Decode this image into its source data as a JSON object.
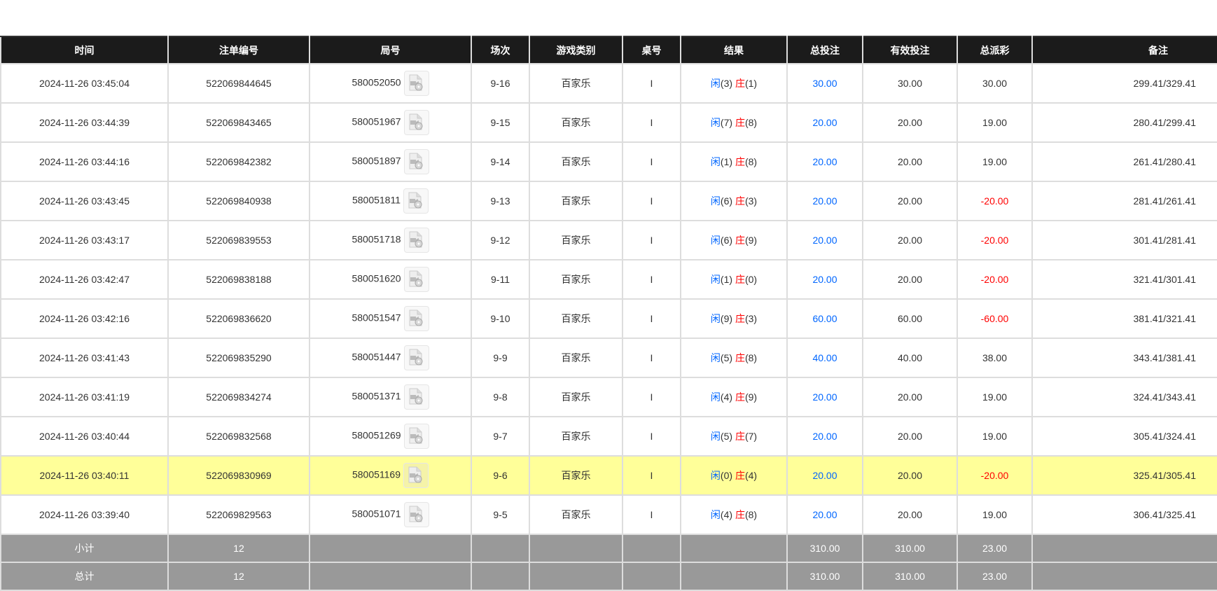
{
  "headers": [
    "时间",
    "注单编号",
    "局号",
    "场次",
    "游戏类别",
    "桌号",
    "结果",
    "总投注",
    "有效投注",
    "总派彩",
    "备注"
  ],
  "player_label": "闲",
  "banker_label": "庄",
  "colors": {
    "header_bg": "#1b1b1b",
    "highlight_row": "#ffff99",
    "summary_bg": "#999999",
    "blue": "#0066ff",
    "red": "#ff0000"
  },
  "rows": [
    {
      "time": "2024-11-26 03:45:04",
      "bet_id": "522069844645",
      "round": "580052050",
      "shoe": "9-16",
      "game": "百家乐",
      "table": "I",
      "player": "(3)",
      "banker": "(1)",
      "total_bet": "30.00",
      "valid_bet": "30.00",
      "payout": "30.00",
      "payout_negative": false,
      "remark": "299.41/329.41"
    },
    {
      "time": "2024-11-26 03:44:39",
      "bet_id": "522069843465",
      "round": "580051967",
      "shoe": "9-15",
      "game": "百家乐",
      "table": "I",
      "player": "(7)",
      "banker": "(8)",
      "total_bet": "20.00",
      "valid_bet": "20.00",
      "payout": "19.00",
      "payout_negative": false,
      "remark": "280.41/299.41"
    },
    {
      "time": "2024-11-26 03:44:16",
      "bet_id": "522069842382",
      "round": "580051897",
      "shoe": "9-14",
      "game": "百家乐",
      "table": "I",
      "player": "(1)",
      "banker": "(8)",
      "total_bet": "20.00",
      "valid_bet": "20.00",
      "payout": "19.00",
      "payout_negative": false,
      "remark": "261.41/280.41"
    },
    {
      "time": "2024-11-26 03:43:45",
      "bet_id": "522069840938",
      "round": "580051811",
      "shoe": "9-13",
      "game": "百家乐",
      "table": "I",
      "player": "(6)",
      "banker": "(3)",
      "total_bet": "20.00",
      "valid_bet": "20.00",
      "payout": "-20.00",
      "payout_negative": true,
      "remark": "281.41/261.41"
    },
    {
      "time": "2024-11-26 03:43:17",
      "bet_id": "522069839553",
      "round": "580051718",
      "shoe": "9-12",
      "game": "百家乐",
      "table": "I",
      "player": "(6)",
      "banker": "(9)",
      "total_bet": "20.00",
      "valid_bet": "20.00",
      "payout": "-20.00",
      "payout_negative": true,
      "remark": "301.41/281.41"
    },
    {
      "time": "2024-11-26 03:42:47",
      "bet_id": "522069838188",
      "round": "580051620",
      "shoe": "9-11",
      "game": "百家乐",
      "table": "I",
      "player": "(1)",
      "banker": "(0)",
      "total_bet": "20.00",
      "valid_bet": "20.00",
      "payout": "-20.00",
      "payout_negative": true,
      "remark": "321.41/301.41"
    },
    {
      "time": "2024-11-26 03:42:16",
      "bet_id": "522069836620",
      "round": "580051547",
      "shoe": "9-10",
      "game": "百家乐",
      "table": "I",
      "player": "(9)",
      "banker": "(3)",
      "total_bet": "60.00",
      "valid_bet": "60.00",
      "payout": "-60.00",
      "payout_negative": true,
      "remark": "381.41/321.41"
    },
    {
      "time": "2024-11-26 03:41:43",
      "bet_id": "522069835290",
      "round": "580051447",
      "shoe": "9-9",
      "game": "百家乐",
      "table": "I",
      "player": "(5)",
      "banker": "(8)",
      "total_bet": "40.00",
      "valid_bet": "40.00",
      "payout": "38.00",
      "payout_negative": false,
      "remark": "343.41/381.41"
    },
    {
      "time": "2024-11-26 03:41:19",
      "bet_id": "522069834274",
      "round": "580051371",
      "shoe": "9-8",
      "game": "百家乐",
      "table": "I",
      "player": "(4)",
      "banker": "(9)",
      "total_bet": "20.00",
      "valid_bet": "20.00",
      "payout": "19.00",
      "payout_negative": false,
      "remark": "324.41/343.41"
    },
    {
      "time": "2024-11-26 03:40:44",
      "bet_id": "522069832568",
      "round": "580051269",
      "shoe": "9-7",
      "game": "百家乐",
      "table": "I",
      "player": "(5)",
      "banker": "(7)",
      "total_bet": "20.00",
      "valid_bet": "20.00",
      "payout": "19.00",
      "payout_negative": false,
      "remark": "305.41/324.41"
    },
    {
      "time": "2024-11-26 03:40:11",
      "bet_id": "522069830969",
      "round": "580051169",
      "shoe": "9-6",
      "game": "百家乐",
      "table": "I",
      "player": "(0)",
      "banker": "(4)",
      "total_bet": "20.00",
      "valid_bet": "20.00",
      "payout": "-20.00",
      "payout_negative": true,
      "remark": "325.41/305.41",
      "highlighted": true
    },
    {
      "time": "2024-11-26 03:39:40",
      "bet_id": "522069829563",
      "round": "580051071",
      "shoe": "9-5",
      "game": "百家乐",
      "table": "I",
      "player": "(4)",
      "banker": "(8)",
      "total_bet": "20.00",
      "valid_bet": "20.00",
      "payout": "19.00",
      "payout_negative": false,
      "remark": "306.41/325.41"
    }
  ],
  "summary": [
    {
      "label": "小计",
      "count": "12",
      "total_bet": "310.00",
      "valid_bet": "310.00",
      "payout": "23.00"
    },
    {
      "label": "总计",
      "count": "12",
      "total_bet": "310.00",
      "valid_bet": "310.00",
      "payout": "23.00"
    }
  ]
}
